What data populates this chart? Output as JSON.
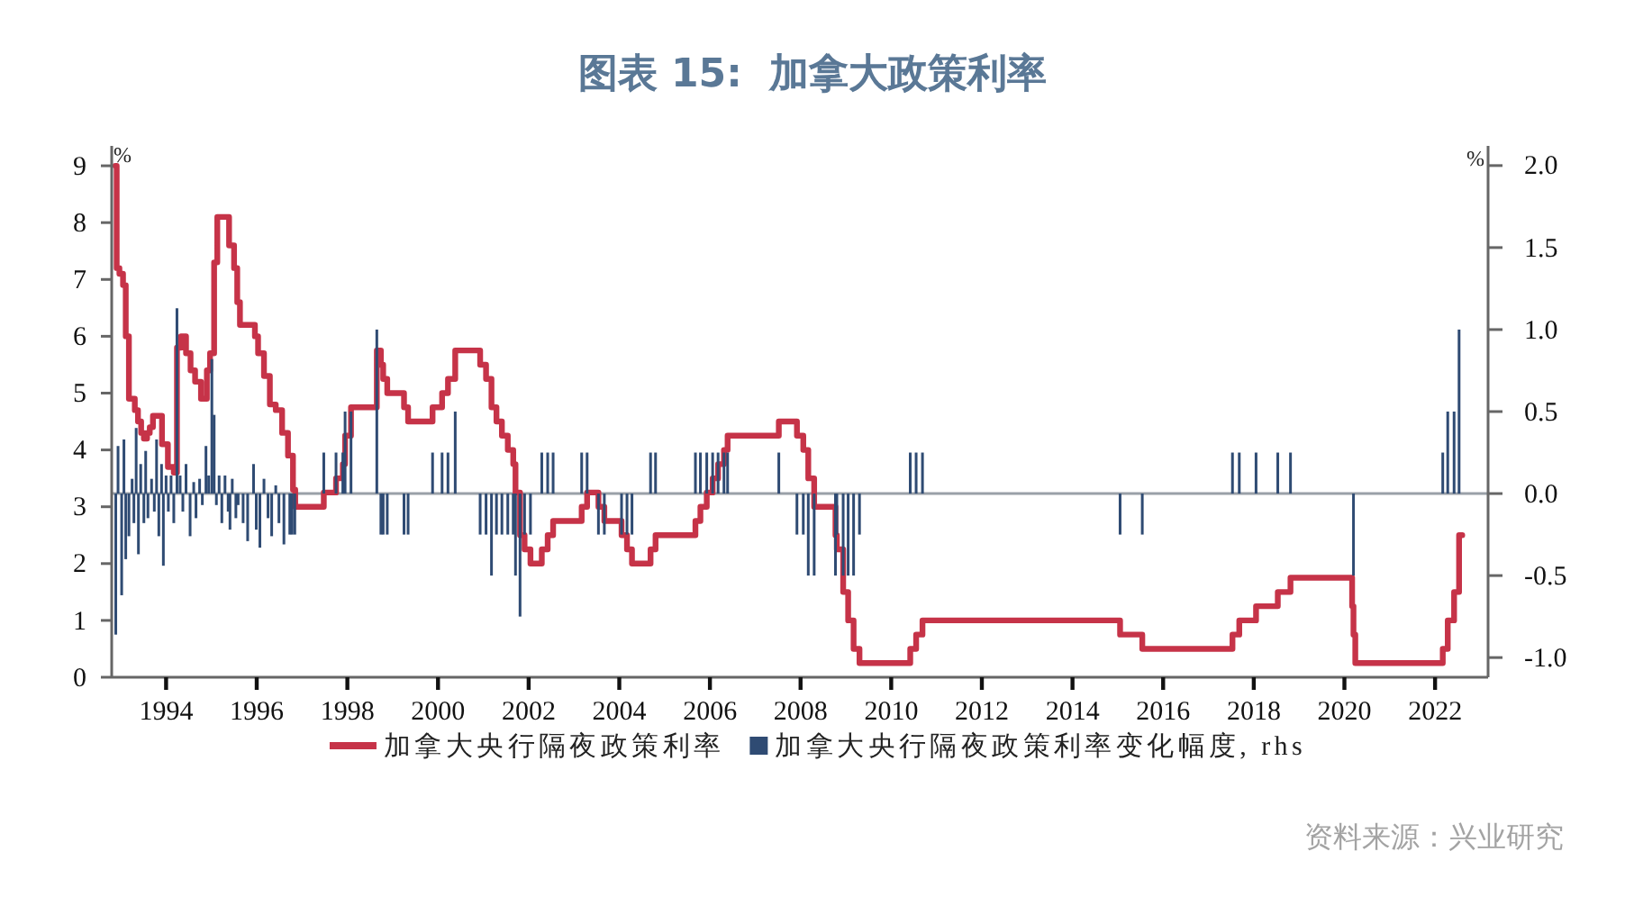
{
  "chart_data": {
    "type": "step",
    "title": "图表 15:  加拿大政策利率",
    "ylabel": "%",
    "y2label": "%",
    "annotations": [
      "资料来源：兴业研究"
    ],
    "xlim": [
      1992.8,
      2023.17
    ],
    "xticks": [
      1994,
      1996,
      1998,
      2000,
      2002,
      2004,
      2006,
      2008,
      2010,
      2012,
      2014,
      2016,
      2018,
      2020,
      2022
    ],
    "ylim": [
      0,
      9.35
    ],
    "yticks": [
      0,
      1,
      2,
      3,
      4,
      5,
      6,
      7,
      8,
      9
    ],
    "y2lim": [
      -1.12,
      2.12
    ],
    "y2ticks": [
      {
        "value": -1,
        "label": "-1.0"
      },
      -0.5,
      {
        "value": 0,
        "label": "0.0"
      },
      0.5,
      {
        "value": 1,
        "label": "1.0"
      },
      1.5,
      {
        "value": 2,
        "label": "2.0"
      }
    ],
    "legend": "bottom",
    "ref_lines": [
      {
        "axis": "y2",
        "value": 0,
        "color": "#9aa0a8"
      }
    ],
    "series": [
      {
        "name": "加拿大央行隔夜政策利率",
        "color": "#c63348",
        "x": [
          1992.88,
          1992.91,
          1992.97,
          1993.05,
          1993.11,
          1993.18,
          1993.31,
          1993.38,
          1993.45,
          1993.51,
          1993.58,
          1993.64,
          1993.71,
          1993.82,
          1993.91,
          1994.04,
          1994.17,
          1994.24,
          1994.33,
          1994.44,
          1994.54,
          1994.64,
          1994.77,
          1994.84,
          1994.9,
          1994.97,
          1995.06,
          1995.13,
          1995.3,
          1995.39,
          1995.5,
          1995.57,
          1995.63,
          1995.83,
          1995.96,
          1996.03,
          1996.16,
          1996.29,
          1996.42,
          1996.56,
          1996.69,
          1996.8,
          1996.85,
          1997.48,
          1997.75,
          1997.9,
          1997.95,
          1998.08,
          1998.65,
          1998.74,
          1998.79,
          1998.88,
          1999.25,
          1999.34,
          1999.88,
          2000.09,
          2000.22,
          2000.38,
          2000.93,
          2001.06,
          2001.18,
          2001.29,
          2001.41,
          2001.54,
          2001.66,
          2001.71,
          2001.81,
          2001.91,
          2002.04,
          2002.29,
          2002.42,
          2002.54,
          2003.17,
          2003.29,
          2003.54,
          2003.67,
          2004.05,
          2004.17,
          2004.28,
          2004.69,
          2004.8,
          2005.68,
          2005.79,
          2005.93,
          2006.06,
          2006.18,
          2006.31,
          2006.39,
          2007.52,
          2007.92,
          2008.06,
          2008.17,
          2008.3,
          2008.77,
          2008.8,
          2008.94,
          2009.05,
          2009.17,
          2009.3,
          2010.42,
          2010.55,
          2010.69,
          2015.05,
          2015.54,
          2017.53,
          2017.68,
          2018.05,
          2018.53,
          2018.81,
          2020.17,
          2020.2,
          2020.24,
          2022.17,
          2022.28,
          2022.42,
          2022.53,
          2022.6
        ],
        "values": [
          9.0,
          7.2,
          7.1,
          6.9,
          6.0,
          4.9,
          4.7,
          4.5,
          4.3,
          4.2,
          4.3,
          4.4,
          4.6,
          4.6,
          4.1,
          3.7,
          3.6,
          5.8,
          6.0,
          5.7,
          5.4,
          5.2,
          4.9,
          4.9,
          5.4,
          5.7,
          7.3,
          8.1,
          8.1,
          7.6,
          7.2,
          6.6,
          6.2,
          6.2,
          6.0,
          5.7,
          5.3,
          4.8,
          4.7,
          4.3,
          3.9,
          3.3,
          3.0,
          3.25,
          3.5,
          3.75,
          4.25,
          4.75,
          5.75,
          5.5,
          5.25,
          5.0,
          4.75,
          4.5,
          4.75,
          5.0,
          5.25,
          5.75,
          5.5,
          5.25,
          4.75,
          4.5,
          4.25,
          4.0,
          3.75,
          3.25,
          2.5,
          2.25,
          2.0,
          2.25,
          2.5,
          2.75,
          3.0,
          3.25,
          3.0,
          2.75,
          2.5,
          2.25,
          2.0,
          2.25,
          2.5,
          2.75,
          3.0,
          3.25,
          3.5,
          3.75,
          4.0,
          4.25,
          4.5,
          4.25,
          4.0,
          3.5,
          3.0,
          2.5,
          2.25,
          1.5,
          1.0,
          0.5,
          0.25,
          0.5,
          0.75,
          1.0,
          0.75,
          0.5,
          0.75,
          1.0,
          1.25,
          1.5,
          1.75,
          1.25,
          0.75,
          0.25,
          0.5,
          1.0,
          1.5,
          2.5,
          2.5
        ]
      },
      {
        "name": "加拿大央行隔夜政策利率变化幅度, rhs",
        "type": "bar",
        "axis": "y2",
        "color": "#2f4b73",
        "x": [
          1992.89,
          1992.94,
          1993.02,
          1993.07,
          1993.11,
          1993.18,
          1993.25,
          1993.29,
          1993.34,
          1993.39,
          1993.44,
          1993.51,
          1993.55,
          1993.6,
          1993.68,
          1993.74,
          1993.79,
          1993.84,
          1993.9,
          1993.94,
          1994.0,
          1994.05,
          1994.11,
          1994.17,
          1994.24,
          1994.31,
          1994.37,
          1994.44,
          1994.53,
          1994.61,
          1994.66,
          1994.74,
          1994.8,
          1994.88,
          1994.94,
          1995.01,
          1995.06,
          1995.11,
          1995.17,
          1995.23,
          1995.3,
          1995.37,
          1995.41,
          1995.46,
          1995.54,
          1995.59,
          1995.7,
          1995.8,
          1995.93,
          1995.99,
          1996.07,
          1996.16,
          1996.25,
          1996.33,
          1996.42,
          1996.49,
          1996.6,
          1996.73,
          1996.78,
          1996.84,
          1997.48,
          1997.75,
          1997.9,
          1997.95,
          1998.08,
          1998.65,
          1998.74,
          1998.79,
          1998.88,
          1999.25,
          1999.34,
          1999.88,
          2000.09,
          2000.22,
          2000.38,
          2000.93,
          2001.06,
          2001.18,
          2001.29,
          2001.41,
          2001.54,
          2001.66,
          2001.71,
          2001.81,
          2001.91,
          2002.04,
          2002.29,
          2002.42,
          2002.54,
          2003.17,
          2003.29,
          2003.54,
          2003.67,
          2004.05,
          2004.17,
          2004.28,
          2004.69,
          2004.8,
          2005.68,
          2005.79,
          2005.93,
          2006.06,
          2006.18,
          2006.31,
          2006.39,
          2007.52,
          2007.92,
          2008.06,
          2008.17,
          2008.3,
          2008.77,
          2008.8,
          2008.94,
          2009.05,
          2009.17,
          2009.3,
          2010.42,
          2010.55,
          2010.69,
          2015.05,
          2015.54,
          2017.53,
          2017.68,
          2018.05,
          2018.53,
          2018.81,
          2020.2,
          2022.17,
          2022.28,
          2022.42,
          2022.53
        ],
        "values": [
          -0.86,
          0.29,
          -0.62,
          0.33,
          -0.4,
          -0.26,
          0.09,
          -0.18,
          0.4,
          -0.37,
          0.18,
          -0.18,
          0.26,
          -0.15,
          0.09,
          -0.11,
          0.33,
          -0.26,
          0.18,
          -0.44,
          0.11,
          -0.11,
          0.11,
          -0.18,
          1.13,
          0.11,
          -0.11,
          0.18,
          -0.26,
          0.07,
          -0.15,
          0.09,
          -0.07,
          0.29,
          0.11,
          0.82,
          0.48,
          -0.07,
          0.11,
          -0.18,
          0.11,
          -0.11,
          -0.22,
          0.09,
          -0.15,
          -0.07,
          -0.18,
          -0.29,
          0.18,
          -0.22,
          -0.33,
          0.09,
          -0.15,
          -0.26,
          0.05,
          -0.18,
          -0.31,
          -0.25,
          -0.25,
          -0.25,
          0.25,
          0.25,
          0.25,
          0.5,
          0.5,
          1.0,
          -0.25,
          -0.25,
          -0.25,
          -0.25,
          -0.25,
          0.25,
          0.25,
          0.25,
          0.5,
          -0.25,
          -0.25,
          -0.5,
          -0.25,
          -0.25,
          -0.25,
          -0.25,
          -0.5,
          -0.75,
          -0.25,
          -0.25,
          0.25,
          0.25,
          0.25,
          0.25,
          0.25,
          -0.25,
          -0.25,
          -0.25,
          -0.25,
          -0.25,
          0.25,
          0.25,
          0.25,
          0.25,
          0.25,
          0.25,
          0.25,
          0.25,
          0.25,
          0.25,
          -0.25,
          -0.25,
          -0.5,
          -0.5,
          -0.5,
          -0.25,
          -0.5,
          -0.5,
          -0.5,
          -0.25,
          0.25,
          0.25,
          0.25,
          -0.25,
          -0.25,
          0.25,
          0.25,
          0.25,
          0.25,
          0.25,
          -0.5,
          0.25,
          0.5,
          0.5,
          1.0
        ]
      }
    ]
  }
}
